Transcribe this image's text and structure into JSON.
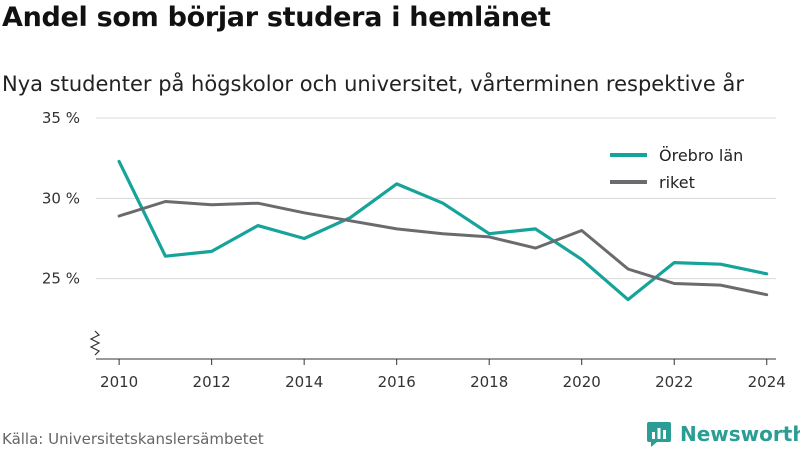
{
  "header": {
    "title": "Andel som börjar studera i hemlänet",
    "subtitle": "Nya studenter på högskolor och universitet, vårterminen respektive år"
  },
  "footer": {
    "source": "Källa: Universitetskanslersämbetet",
    "brand": "Newsworthy",
    "brand_icon": "bar-chart-icon",
    "brand_color": "#2a9d94"
  },
  "chart_data": {
    "type": "line",
    "title": "Andel som börjar studera i hemlänet",
    "subtitle": "Nya studenter på högskolor och universitet, vårterminen respektive år",
    "x": [
      2010,
      2011,
      2012,
      2013,
      2014,
      2015,
      2016,
      2017,
      2018,
      2019,
      2020,
      2021,
      2022,
      2023,
      2024
    ],
    "x_ticks": [
      2010,
      2012,
      2014,
      2016,
      2018,
      2020,
      2022,
      2024
    ],
    "x_tick_labels": [
      "2010",
      "2012",
      "2014",
      "2016",
      "2018",
      "2020",
      "2022",
      "2024"
    ],
    "y_ticks": [
      25,
      30,
      35
    ],
    "y_tick_labels": [
      "25 %",
      "30 %",
      "35 %"
    ],
    "xlim": [
      2009.5,
      2024.2
    ],
    "ylim": [
      20,
      35
    ],
    "axis_break": true,
    "grid": "horizontal",
    "legend_position": "top-right",
    "series": [
      {
        "name": "Örebro län",
        "color": "#16a39a",
        "values": [
          32.3,
          26.4,
          26.7,
          28.3,
          27.5,
          28.8,
          30.9,
          29.7,
          27.8,
          28.1,
          26.2,
          23.7,
          26.0,
          25.9,
          25.3
        ]
      },
      {
        "name": "riket",
        "color": "#6b6b6f",
        "values": [
          28.9,
          29.8,
          29.6,
          29.7,
          29.1,
          28.6,
          28.1,
          27.8,
          27.6,
          26.9,
          28.0,
          25.6,
          24.7,
          24.6,
          24.0
        ]
      }
    ]
  }
}
